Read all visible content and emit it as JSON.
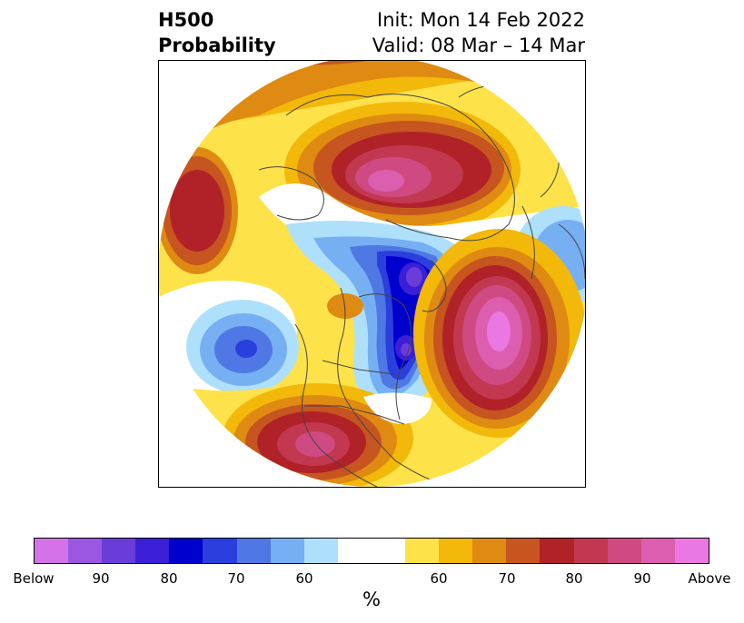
{
  "header": {
    "left_line1": "H500",
    "left_line2": "Probability",
    "right_line1": "Init: Mon 14 Feb 2022",
    "right_line2": "Valid: 08 Mar – 14 Mar"
  },
  "colorbar": {
    "segments": [
      {
        "color": "#d473e8"
      },
      {
        "color": "#9c57e0"
      },
      {
        "color": "#6a3dd8"
      },
      {
        "color": "#3a1fd6"
      },
      {
        "color": "#0000cd"
      },
      {
        "color": "#2a3fdc"
      },
      {
        "color": "#4f78e4"
      },
      {
        "color": "#76b0f2"
      },
      {
        "color": "#aee0fb"
      },
      {
        "color": "#ffffff",
        "neutral": true
      },
      {
        "color": "#fee24a"
      },
      {
        "color": "#f2b80a"
      },
      {
        "color": "#df8a12"
      },
      {
        "color": "#c65520"
      },
      {
        "color": "#b02228"
      },
      {
        "color": "#c23850"
      },
      {
        "color": "#cf4a82"
      },
      {
        "color": "#dc5eaf"
      },
      {
        "color": "#ea78e2"
      }
    ],
    "tick_labels": [
      "Below",
      "90",
      "80",
      "70",
      "60",
      "60",
      "70",
      "80",
      "90",
      "Above"
    ],
    "units": "%"
  },
  "map": {
    "anomaly_colors": {
      "white": "#ffffff",
      "yellow": "#fee24a",
      "gold": "#f2b80a",
      "orange": "#df8a12",
      "rust": "#c65520",
      "red": "#b02228",
      "crimson": "#c23850",
      "rose": "#cf4a82",
      "pink": "#dc5eaf",
      "magenta": "#ea78e2",
      "lightblue": "#aee0fb",
      "skyblue": "#76b0f2",
      "blue": "#4f78e4",
      "royal": "#2a3fdc",
      "navy": "#0000cd",
      "indigo": "#3a1fd6",
      "violet": "#6a3dd8",
      "purple": "#9c57e0"
    }
  }
}
